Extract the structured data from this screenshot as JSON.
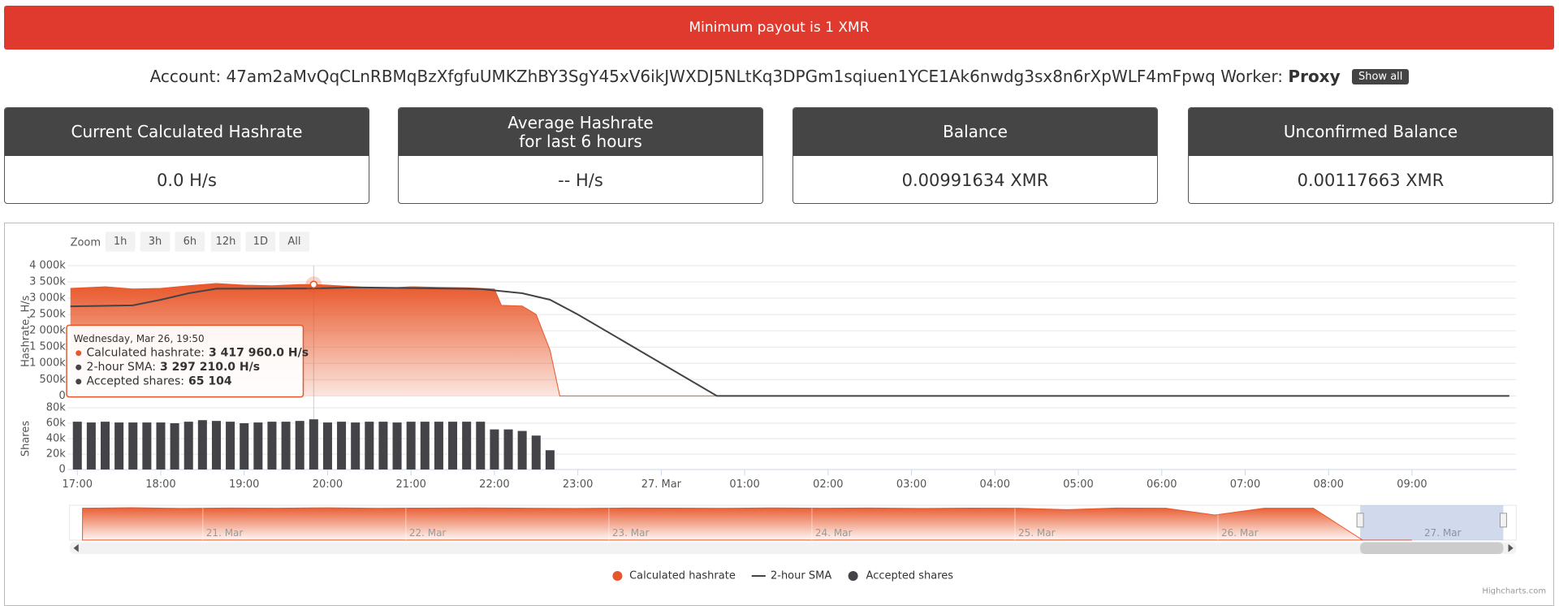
{
  "banner": "Minimum payout is 1 XMR",
  "account": {
    "label": "Account:",
    "address": "47am2aMvQqCLnRBMqBzXfgfuUMKZhBY3SgY45xV6ikJWXDJ5NLtKq3DPGm1sqiuen1YCE1Ak6nwdg3sx8n6rXpWLF4mFpwq",
    "worker_label": "Worker:",
    "worker": "Proxy",
    "button": "Show all"
  },
  "cards": [
    {
      "title": "Current Calculated Hashrate",
      "value": "0.0 H/s"
    },
    {
      "title": "Average Hashrate\nfor last 6 hours",
      "value": "-- H/s"
    },
    {
      "title": "Balance",
      "value": "0.00991634 XMR"
    },
    {
      "title": "Unconfirmed Balance",
      "value": "0.00117663 XMR"
    }
  ],
  "chart_data": {
    "type": "area",
    "zoom_label": "Zoom",
    "zoom_buttons": [
      "1h",
      "3h",
      "6h",
      "12h",
      "1D",
      "All"
    ],
    "y_label": "Hashrate, H/s",
    "y2_label": "Shares",
    "xlim": [
      "16:53",
      "10:15"
    ],
    "xticks": [
      "17:00",
      "18:00",
      "19:00",
      "20:00",
      "21:00",
      "22:00",
      "23:00",
      {
        "value": "00:00",
        "label": "27. Mar"
      },
      "01:00",
      "02:00",
      "03:00",
      "04:00",
      "05:00",
      "06:00",
      "07:00",
      "08:00",
      "09:00"
    ],
    "ylim": [
      0,
      4000000
    ],
    "yticks": [
      {
        "value": 0,
        "label": "0"
      },
      {
        "value": 500000,
        "label": "500k"
      },
      {
        "value": 1000000,
        "label": "1 000k"
      },
      {
        "value": 1500000,
        "label": "1 500k"
      },
      {
        "value": 2000000,
        "label": "2 000k"
      },
      {
        "value": 2500000,
        "label": "2 500k"
      },
      {
        "value": 3000000,
        "label": "3 000k"
      },
      {
        "value": 3500000,
        "label": "3 500k"
      },
      {
        "value": 4000000,
        "label": "4 000k"
      }
    ],
    "y2lim": [
      0,
      80000
    ],
    "y2ticks": [
      {
        "value": 0,
        "label": "0"
      },
      {
        "value": 20000,
        "label": "20k"
      },
      {
        "value": 40000,
        "label": "40k"
      },
      {
        "value": 60000,
        "label": "60k"
      },
      {
        "value": 80000,
        "label": "80k"
      }
    ],
    "grid": true,
    "series": [
      {
        "name": "Calculated hashrate",
        "type": "area",
        "color": "#e8572a",
        "x": [
          "16:55",
          "17:20",
          "17:40",
          "18:00",
          "18:20",
          "18:40",
          "19:00",
          "19:20",
          "19:40",
          "19:50",
          "20:00",
          "20:20",
          "20:40",
          "21:00",
          "21:20",
          "21:40",
          "22:00",
          "22:05",
          "22:20",
          "22:30",
          "22:40",
          "22:47",
          "10:10"
        ],
        "values": [
          3300000,
          3350000,
          3280000,
          3300000,
          3380000,
          3450000,
          3400000,
          3380000,
          3420000,
          3417960,
          3400000,
          3350000,
          3300000,
          3350000,
          3330000,
          3320000,
          3280000,
          2780000,
          2760000,
          2500000,
          1400000,
          0,
          0
        ]
      },
      {
        "name": "2-hour SMA",
        "type": "line",
        "color": "#434348",
        "x": [
          "16:55",
          "17:40",
          "18:00",
          "18:20",
          "18:40",
          "19:50",
          "20:20",
          "21:00",
          "21:50",
          "22:20",
          "22:40",
          "23:00",
          "00:00",
          "00:40",
          "10:10"
        ],
        "values": [
          2750000,
          2780000,
          2950000,
          3150000,
          3290000,
          3297210,
          3330000,
          3310000,
          3280000,
          3150000,
          2950000,
          2500000,
          1000000,
          0,
          0
        ]
      },
      {
        "name": "Accepted shares",
        "type": "column",
        "color": "#434348",
        "axis": "y2",
        "x": [
          "17:00",
          "17:10",
          "17:20",
          "17:30",
          "17:40",
          "17:50",
          "18:00",
          "18:10",
          "18:20",
          "18:30",
          "18:40",
          "18:50",
          "19:00",
          "19:10",
          "19:20",
          "19:30",
          "19:40",
          "19:50",
          "20:00",
          "20:10",
          "20:20",
          "20:30",
          "20:40",
          "20:50",
          "21:00",
          "21:10",
          "21:20",
          "21:30",
          "21:40",
          "21:50",
          "22:00",
          "22:10",
          "22:20",
          "22:30",
          "22:40"
        ],
        "values": [
          62000,
          61000,
          62000,
          61000,
          61000,
          61000,
          61000,
          60000,
          62000,
          64000,
          63000,
          62000,
          60000,
          61000,
          62000,
          62000,
          63000,
          65104,
          61000,
          62000,
          61000,
          62000,
          62000,
          61000,
          62000,
          62000,
          62000,
          62000,
          62000,
          62000,
          52000,
          52000,
          50000,
          44000,
          25000
        ]
      }
    ],
    "tooltip": {
      "date": "Wednesday, Mar 26, 19:50",
      "rows": [
        {
          "name": "Calculated hashrate:",
          "value": "3 417 960.0 H/s"
        },
        {
          "name": "2-hour SMA:",
          "value": "3 297 210.0 H/s"
        },
        {
          "name": "Accepted shares:",
          "value": "65 104"
        }
      ]
    },
    "navigator": {
      "labels": [
        "21. Mar",
        "22. Mar",
        "23. Mar",
        "24. Mar",
        "25. Mar",
        "26. Mar",
        "27. Mar"
      ],
      "ylim": [
        0,
        3600000
      ],
      "values": [
        3300000,
        3350000,
        3280000,
        3320000,
        3300000,
        3340000,
        3290000,
        3310000,
        3330000,
        3300000,
        3280000,
        3320000,
        3310000,
        3290000,
        3330000,
        3300000,
        3320000,
        3280000,
        3310000,
        3300000,
        3150000,
        3320000,
        3300000,
        2600000,
        3300000,
        3300000,
        0,
        0
      ]
    },
    "credits": "Highcharts.com"
  }
}
